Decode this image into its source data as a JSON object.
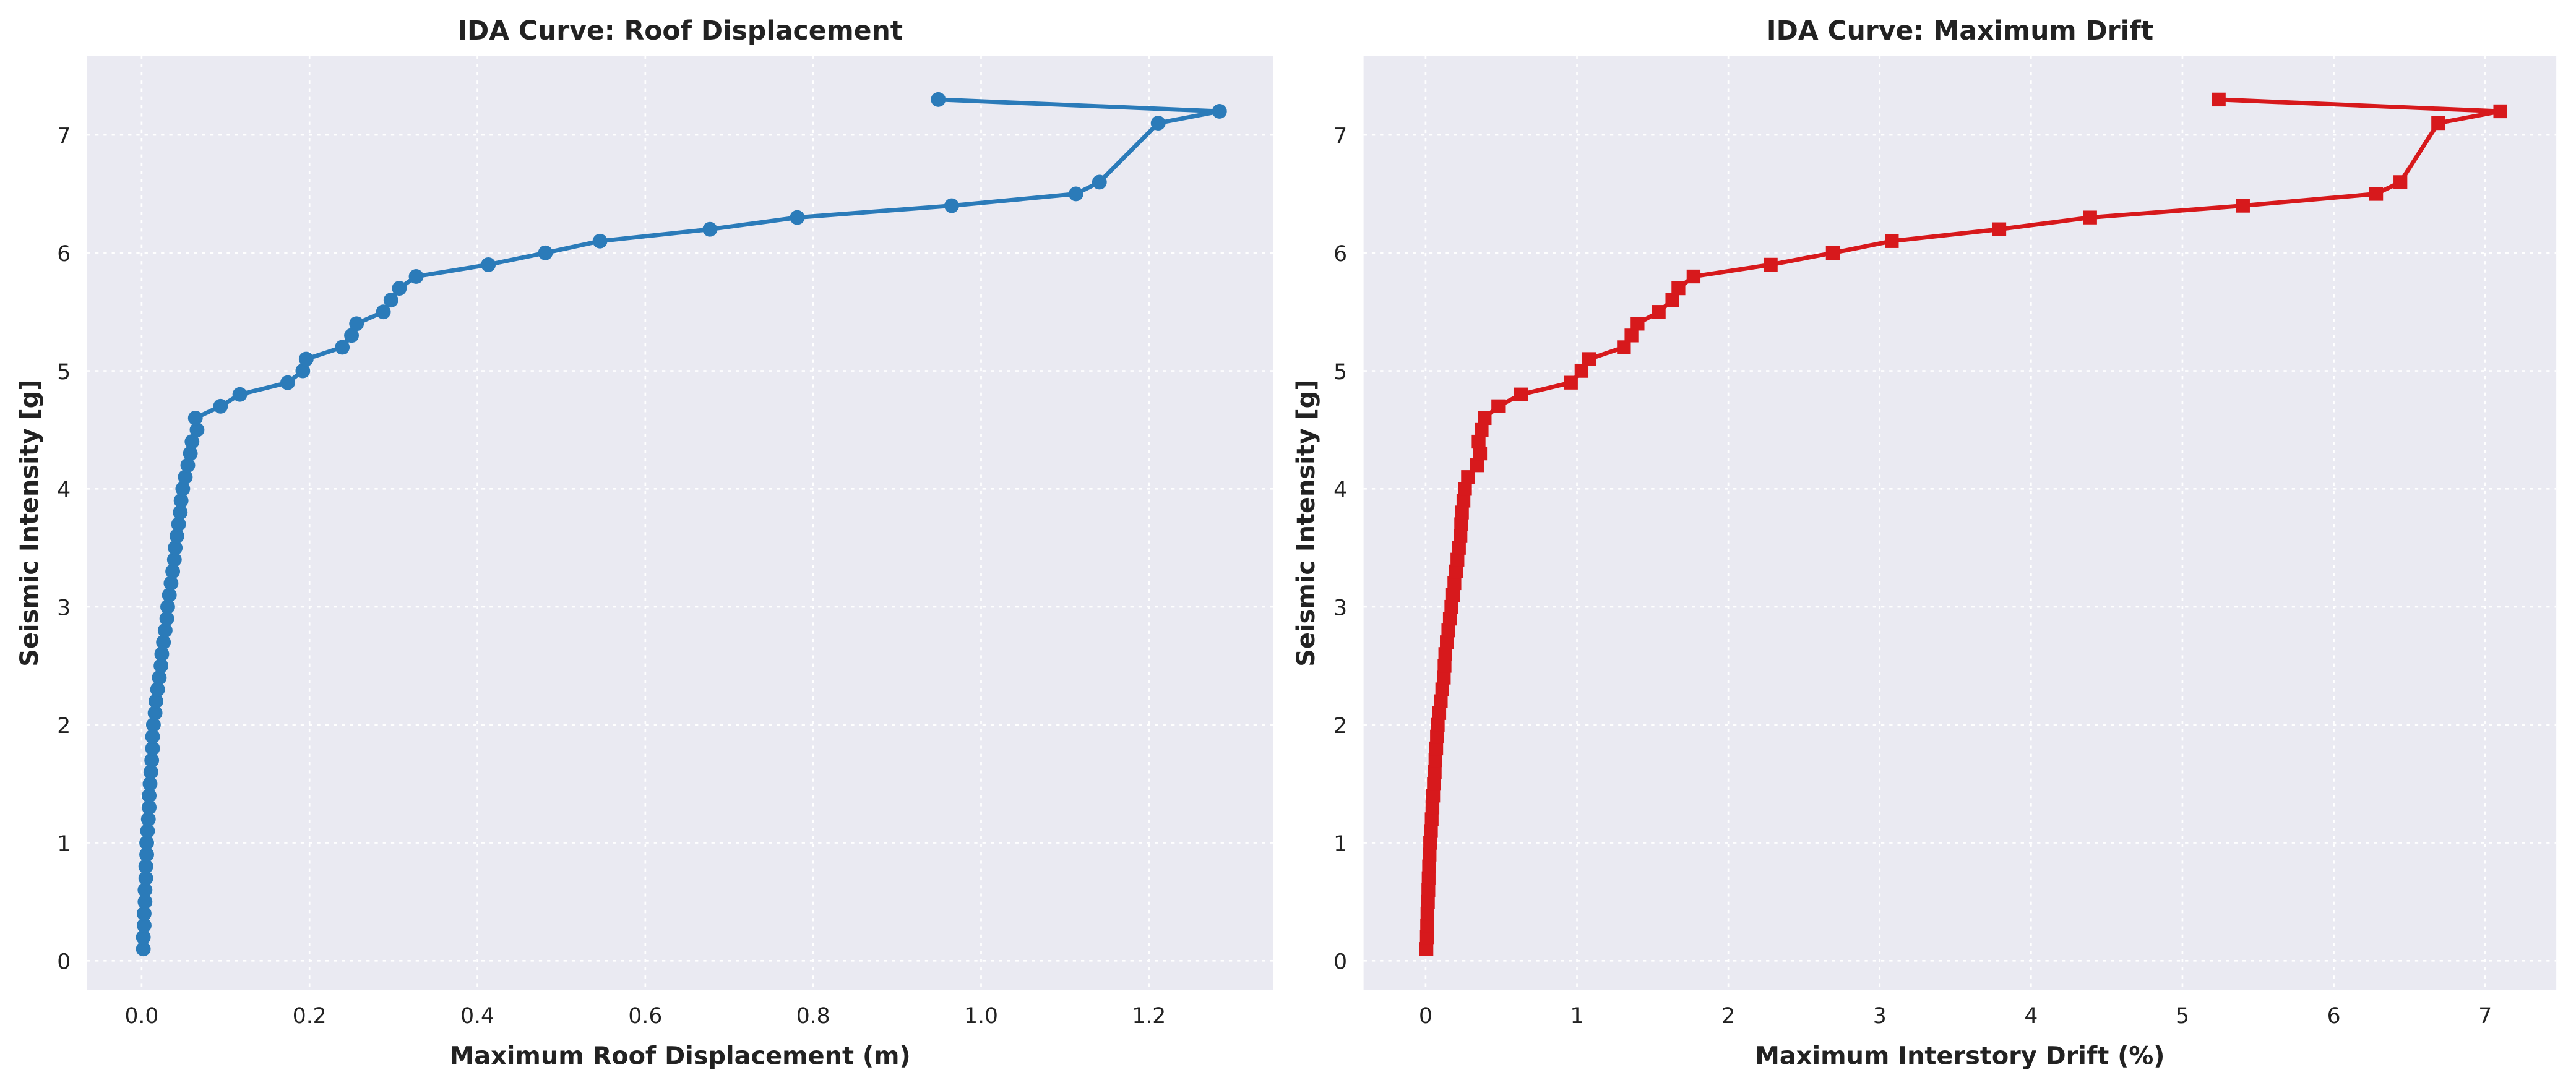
{
  "chart_data": [
    {
      "type": "line",
      "title": "IDA Curve: Roof Displacement",
      "xlabel": "Maximum Roof Displacement (m)",
      "ylabel": "Seismic Intensity [g]",
      "color": "#2b7bb9",
      "marker": "circle",
      "grid": true,
      "xlim": [
        -0.065,
        1.348
      ],
      "ylim": [
        -0.25,
        7.67
      ],
      "xticks": [
        {
          "value": 0,
          "label": "0.0"
        },
        0.2,
        0.4,
        0.6,
        0.8,
        {
          "value": 1,
          "label": "1.0"
        },
        1.2
      ],
      "yticks": [
        0,
        1,
        2,
        3,
        4,
        5,
        6,
        7
      ],
      "x": [
        0.002,
        0.002,
        0.003,
        0.003,
        0.004,
        0.004,
        0.005,
        0.005,
        0.006,
        0.006,
        0.007,
        0.008,
        0.009,
        0.009,
        0.01,
        0.011,
        0.012,
        0.013,
        0.013,
        0.014,
        0.016,
        0.017,
        0.019,
        0.021,
        0.023,
        0.024,
        0.026,
        0.028,
        0.03,
        0.031,
        0.033,
        0.035,
        0.037,
        0.039,
        0.04,
        0.042,
        0.044,
        0.046,
        0.047,
        0.049,
        0.052,
        0.055,
        0.058,
        0.06,
        0.066,
        0.064,
        0.094,
        0.117,
        0.174,
        0.192,
        0.196,
        0.239,
        0.25,
        0.256,
        0.288,
        0.297,
        0.307,
        0.327,
        0.413,
        0.481,
        0.546,
        0.677,
        0.781,
        0.965,
        1.113,
        1.141,
        1.211,
        1.284,
        0.949
      ],
      "values": [
        0.1,
        0.2,
        0.3,
        0.4,
        0.5,
        0.6,
        0.7,
        0.8,
        0.9,
        1.0,
        1.1,
        1.2,
        1.3,
        1.4,
        1.5,
        1.6,
        1.7,
        1.8,
        1.9,
        2.0,
        2.1,
        2.2,
        2.3,
        2.4,
        2.5,
        2.6,
        2.7,
        2.8,
        2.9,
        3.0,
        3.1,
        3.2,
        3.3,
        3.4,
        3.5,
        3.6,
        3.7,
        3.8,
        3.9,
        4.0,
        4.1,
        4.2,
        4.3,
        4.4,
        4.5,
        4.6,
        4.7,
        4.8,
        4.9,
        5.0,
        5.1,
        5.2,
        5.3,
        5.4,
        5.5,
        5.6,
        5.7,
        5.8,
        5.9,
        6.0,
        6.1,
        6.2,
        6.3,
        6.4,
        6.5,
        6.6,
        7.1,
        7.2,
        7.3
      ]
    },
    {
      "type": "line",
      "title": "IDA Curve: Maximum Drift",
      "xlabel": "Maximum Interstory Drift (%)",
      "ylabel": "Seismic Intensity [g]",
      "color": "#d7191c",
      "marker": "square",
      "grid": true,
      "xlim": [
        -0.41,
        7.47
      ],
      "ylim": [
        -0.25,
        7.67
      ],
      "xticks": [
        0,
        1,
        2,
        3,
        4,
        5,
        6,
        7
      ],
      "yticks": [
        0,
        1,
        2,
        3,
        4,
        5,
        6,
        7
      ],
      "x": [
        0.005,
        0.008,
        0.01,
        0.012,
        0.015,
        0.018,
        0.02,
        0.023,
        0.026,
        0.03,
        0.035,
        0.04,
        0.045,
        0.05,
        0.055,
        0.06,
        0.065,
        0.07,
        0.075,
        0.08,
        0.09,
        0.1,
        0.11,
        0.12,
        0.125,
        0.13,
        0.14,
        0.15,
        0.16,
        0.17,
        0.18,
        0.19,
        0.2,
        0.21,
        0.22,
        0.23,
        0.235,
        0.24,
        0.25,
        0.26,
        0.28,
        0.34,
        0.36,
        0.35,
        0.37,
        0.39,
        0.48,
        0.63,
        0.96,
        1.03,
        1.08,
        1.31,
        1.36,
        1.4,
        1.54,
        1.63,
        1.67,
        1.77,
        2.28,
        2.69,
        3.08,
        3.79,
        4.39,
        5.4,
        6.28,
        6.44,
        6.69,
        7.1,
        5.24
      ],
      "values": [
        0.1,
        0.2,
        0.3,
        0.4,
        0.5,
        0.6,
        0.7,
        0.8,
        0.9,
        1.0,
        1.1,
        1.2,
        1.3,
        1.4,
        1.5,
        1.6,
        1.7,
        1.8,
        1.9,
        2.0,
        2.1,
        2.2,
        2.3,
        2.4,
        2.5,
        2.6,
        2.7,
        2.8,
        2.9,
        3.0,
        3.1,
        3.2,
        3.3,
        3.4,
        3.5,
        3.6,
        3.7,
        3.8,
        3.9,
        4.0,
        4.1,
        4.2,
        4.3,
        4.4,
        4.5,
        4.6,
        4.7,
        4.8,
        4.9,
        5.0,
        5.1,
        5.2,
        5.3,
        5.4,
        5.5,
        5.6,
        5.7,
        5.8,
        5.9,
        6.0,
        6.1,
        6.2,
        6.3,
        6.4,
        6.5,
        6.6,
        7.1,
        7.2,
        7.3
      ]
    }
  ]
}
